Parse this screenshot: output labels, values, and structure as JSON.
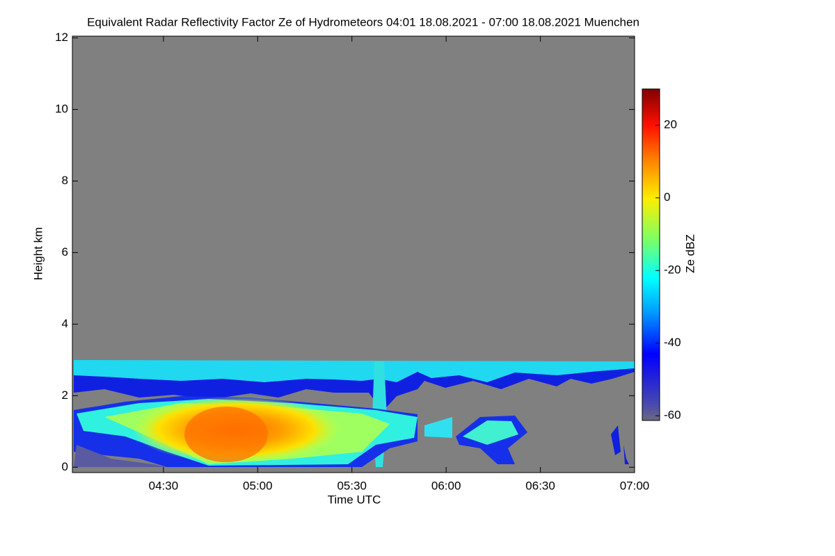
{
  "chart_data": {
    "type": "heatmap",
    "title": "Equivalent Radar Reflectivity Factor Ze of Hydrometeors   04:01 18.08.2021 - 07:00 18.08.2021 Muenchen",
    "x_label": "Time UTC",
    "y_label": "Height km",
    "colorbar_label": "Ze dBZ",
    "xlim": [
      241,
      420
    ],
    "xticks": [
      {
        "value": 270,
        "label": "04:30"
      },
      {
        "value": 300,
        "label": "05:00"
      },
      {
        "value": 330,
        "label": "05:30"
      },
      {
        "value": 360,
        "label": "06:00"
      },
      {
        "value": 390,
        "label": "06:30"
      },
      {
        "value": 420,
        "label": "07:00"
      }
    ],
    "ylim": [
      -0.15,
      12.05
    ],
    "yticks": [
      0,
      2,
      4,
      6,
      8,
      10,
      12
    ],
    "clim": [
      -61.3,
      30
    ],
    "cticks": [
      20,
      0,
      -20,
      -40,
      -60
    ]
  }
}
